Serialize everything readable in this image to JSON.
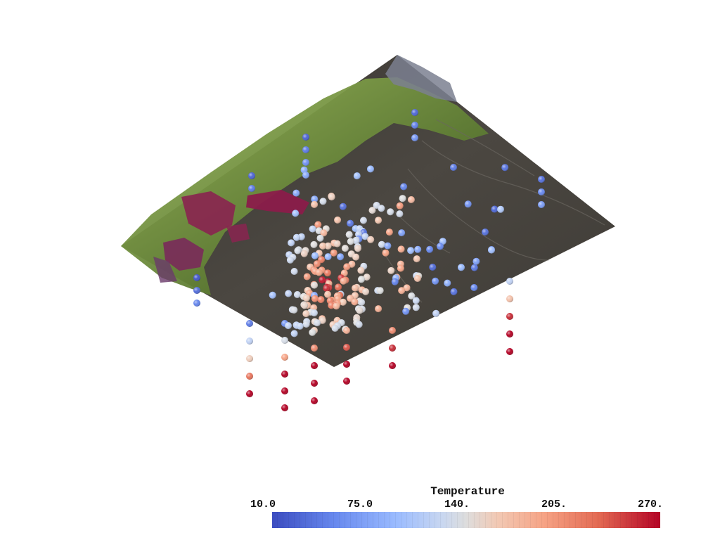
{
  "colorbar": {
    "title": "Temperature",
    "ticks": [
      "10.0",
      "75.0",
      "140.",
      "205.",
      "270."
    ],
    "min": 10,
    "max": 270,
    "colormap": [
      "#3b4cc0",
      "#6788ee",
      "#9abbff",
      "#c9d7f0",
      "#dddddd",
      "#f2c9b4",
      "#f6a385",
      "#e36a53",
      "#b40426"
    ]
  },
  "terrain": {
    "colors": {
      "ground": "#4a4640",
      "vegetation": "#6f8f3a",
      "vegetation_light": "#9ab85a",
      "rock_magenta": "#8a2450",
      "rock_purple": "#6a3a6a",
      "snow_gray": "#8890a0"
    }
  },
  "points": {
    "count_visible": 230,
    "value_range": [
      10,
      270
    ]
  }
}
